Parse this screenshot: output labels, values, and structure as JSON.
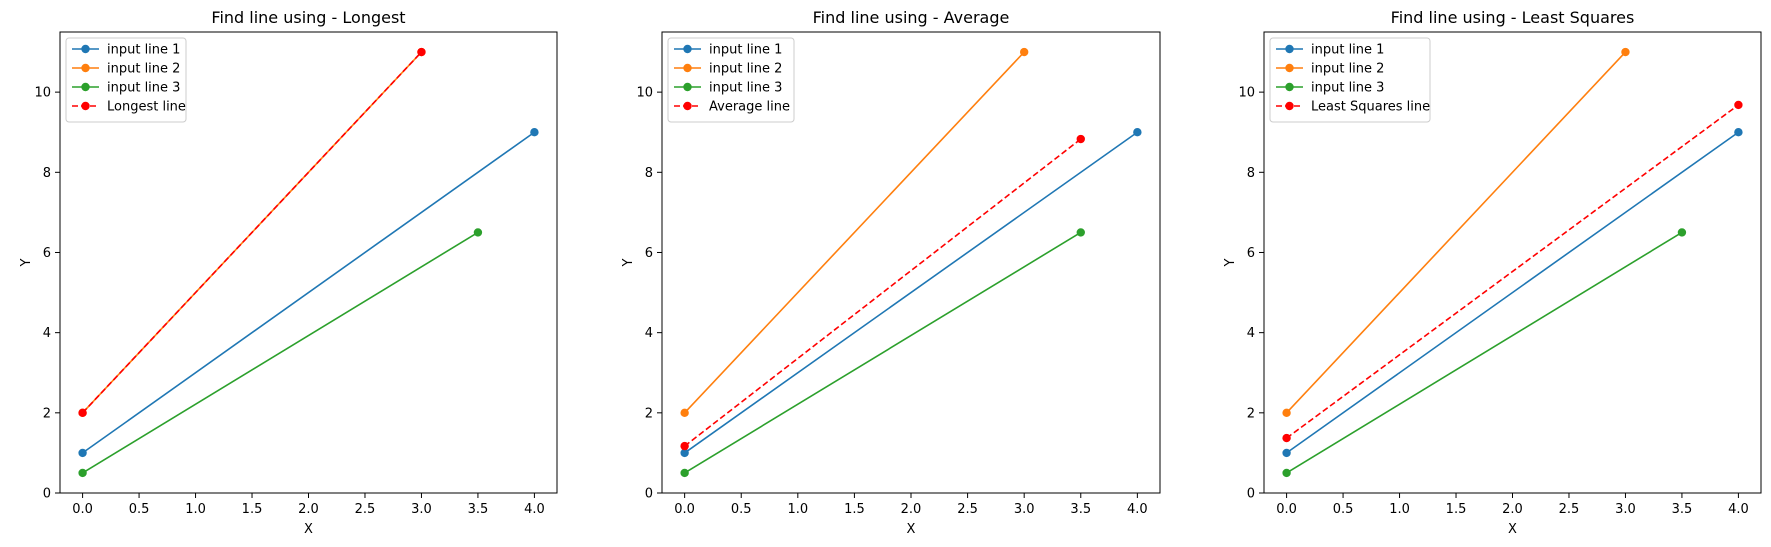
{
  "colors": {
    "line1": "#1f77b4",
    "line2": "#ff7f0e",
    "line3": "#2ca02c",
    "result": "#ff0000"
  },
  "chart_data": [
    {
      "type": "line",
      "title": "Find line using - Longest",
      "xlabel": "X",
      "ylabel": "Y",
      "xlim": [
        -0.2,
        4.2
      ],
      "ylim": [
        0,
        11.5
      ],
      "xticks": [
        "0.0",
        "0.5",
        "1.0",
        "1.5",
        "2.0",
        "2.5",
        "3.0",
        "3.5",
        "4.0"
      ],
      "yticks": [
        "0",
        "2",
        "4",
        "6",
        "8",
        "10"
      ],
      "legend_position": "upper-left",
      "series": [
        {
          "name": "input line 1",
          "x": [
            0,
            4
          ],
          "y": [
            1,
            9
          ],
          "style": "solid",
          "color": "#1f77b4"
        },
        {
          "name": "input line 2",
          "x": [
            0,
            3
          ],
          "y": [
            2,
            11
          ],
          "style": "solid",
          "color": "#ff7f0e"
        },
        {
          "name": "input line 3",
          "x": [
            0,
            3.5
          ],
          "y": [
            0.5,
            6.5
          ],
          "style": "solid",
          "color": "#2ca02c"
        },
        {
          "name": "Longest line",
          "x": [
            0,
            3
          ],
          "y": [
            2,
            11
          ],
          "style": "dashed",
          "color": "#ff0000"
        }
      ]
    },
    {
      "type": "line",
      "title": "Find line using - Average",
      "xlabel": "X",
      "ylabel": "Y",
      "xlim": [
        -0.2,
        4.2
      ],
      "ylim": [
        0,
        11.5
      ],
      "xticks": [
        "0.0",
        "0.5",
        "1.0",
        "1.5",
        "2.0",
        "2.5",
        "3.0",
        "3.5",
        "4.0"
      ],
      "yticks": [
        "0",
        "2",
        "4",
        "6",
        "8",
        "10"
      ],
      "legend_position": "upper-left",
      "series": [
        {
          "name": "input line 1",
          "x": [
            0,
            4
          ],
          "y": [
            1,
            9
          ],
          "style": "solid",
          "color": "#1f77b4"
        },
        {
          "name": "input line 2",
          "x": [
            0,
            3
          ],
          "y": [
            2,
            11
          ],
          "style": "solid",
          "color": "#ff7f0e"
        },
        {
          "name": "input line 3",
          "x": [
            0,
            3.5
          ],
          "y": [
            0.5,
            6.5
          ],
          "style": "solid",
          "color": "#2ca02c"
        },
        {
          "name": "Average line",
          "x": [
            0,
            3.5
          ],
          "y": [
            1.17,
            8.83
          ],
          "style": "dashed",
          "color": "#ff0000"
        }
      ]
    },
    {
      "type": "line",
      "title": "Find line using - Least Squares",
      "xlabel": "X",
      "ylabel": "Y",
      "xlim": [
        -0.2,
        4.2
      ],
      "ylim": [
        0,
        11.5
      ],
      "xticks": [
        "0.0",
        "0.5",
        "1.0",
        "1.5",
        "2.0",
        "2.5",
        "3.0",
        "3.5",
        "4.0"
      ],
      "yticks": [
        "0",
        "2",
        "4",
        "6",
        "8",
        "10"
      ],
      "legend_position": "upper-left",
      "series": [
        {
          "name": "input line 1",
          "x": [
            0,
            4
          ],
          "y": [
            1,
            9
          ],
          "style": "solid",
          "color": "#1f77b4"
        },
        {
          "name": "input line 2",
          "x": [
            0,
            3
          ],
          "y": [
            2,
            11
          ],
          "style": "solid",
          "color": "#ff7f0e"
        },
        {
          "name": "input line 3",
          "x": [
            0,
            3.5
          ],
          "y": [
            0.5,
            6.5
          ],
          "style": "solid",
          "color": "#2ca02c"
        },
        {
          "name": "Least Squares line",
          "x": [
            0,
            4
          ],
          "y": [
            1.37,
            9.68
          ],
          "style": "dashed",
          "color": "#ff0000"
        }
      ]
    }
  ]
}
